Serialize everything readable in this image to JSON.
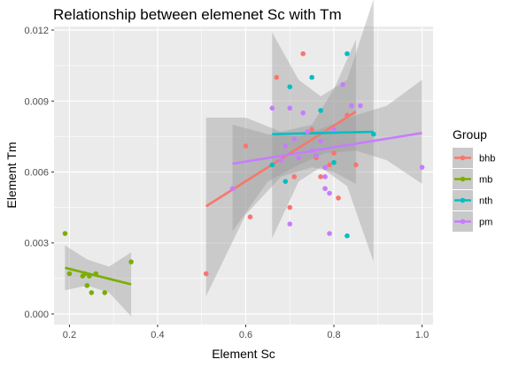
{
  "chart_data": {
    "type": "scatter",
    "title": "Relationship between elemenet Sc with Tm",
    "xlabel": "Element Sc",
    "ylabel": "Element Tm",
    "xlim": [
      0.165,
      1.025
    ],
    "ylim": [
      -0.00045,
      0.01215
    ],
    "x_ticks": [
      0.2,
      0.4,
      0.6,
      0.8,
      1.0
    ],
    "x_tick_labels": [
      "0.2",
      "0.4",
      "0.6",
      "0.8",
      "1.0"
    ],
    "y_ticks": [
      0.0,
      0.003,
      0.006,
      0.009,
      0.012
    ],
    "y_tick_labels": [
      "0.000",
      "0.003",
      "0.006",
      "0.009",
      "0.012"
    ],
    "grid": true,
    "legend": {
      "title": "Group",
      "position": "right"
    },
    "series": [
      {
        "name": "bhb",
        "color": "#F8766D",
        "points": [
          [
            0.51,
            0.0017
          ],
          [
            0.6,
            0.0071
          ],
          [
            0.61,
            0.0041
          ],
          [
            0.67,
            0.01
          ],
          [
            0.7,
            0.0045
          ],
          [
            0.71,
            0.0058
          ],
          [
            0.73,
            0.011
          ],
          [
            0.75,
            0.0078
          ],
          [
            0.76,
            0.0066
          ],
          [
            0.77,
            0.0058
          ],
          [
            0.79,
            0.0063
          ],
          [
            0.8,
            0.0068
          ],
          [
            0.81,
            0.0049
          ],
          [
            0.83,
            0.0084
          ],
          [
            0.85,
            0.0063
          ]
        ],
        "fit": {
          "x": [
            0.51,
            0.85
          ],
          "y": [
            0.00455,
            0.00855
          ]
        },
        "band": {
          "x": [
            0.51,
            0.6,
            0.68,
            0.75,
            0.8,
            0.85
          ],
          "lower": [
            0.00075,
            0.0042,
            0.0058,
            0.0062,
            0.006,
            0.0055
          ],
          "upper": [
            0.0083,
            0.0083,
            0.0077,
            0.008,
            0.0095,
            0.0116
          ]
        }
      },
      {
        "name": "mb",
        "color": "#7CAE00",
        "points": [
          [
            0.19,
            0.0034
          ],
          [
            0.2,
            0.0017
          ],
          [
            0.23,
            0.0016
          ],
          [
            0.235,
            0.0017
          ],
          [
            0.24,
            0.0012
          ],
          [
            0.245,
            0.0016
          ],
          [
            0.25,
            0.0009
          ],
          [
            0.26,
            0.0017
          ],
          [
            0.28,
            0.0009
          ],
          [
            0.34,
            0.0022
          ]
        ],
        "fit": {
          "x": [
            0.19,
            0.34
          ],
          "y": [
            0.00195,
            0.00125
          ]
        },
        "band": {
          "x": [
            0.19,
            0.24,
            0.29,
            0.34
          ],
          "lower": [
            0.001,
            0.0012,
            0.0009,
            -0.0001
          ],
          "upper": [
            0.0029,
            0.0023,
            0.002,
            0.0026
          ]
        }
      },
      {
        "name": "nth",
        "color": "#00BFC4",
        "points": [
          [
            0.66,
            0.0063
          ],
          [
            0.69,
            0.0056
          ],
          [
            0.7,
            0.0096
          ],
          [
            0.75,
            0.01
          ],
          [
            0.77,
            0.0086
          ],
          [
            0.8,
            0.0064
          ],
          [
            0.83,
            0.0033
          ],
          [
            0.83,
            0.011
          ],
          [
            0.89,
            0.0076
          ]
        ],
        "fit": {
          "x": [
            0.66,
            0.89
          ],
          "y": [
            0.0076,
            0.0077
          ]
        },
        "band": {
          "x": [
            0.66,
            0.72,
            0.77,
            0.83,
            0.89
          ],
          "lower": [
            0.0032,
            0.0056,
            0.0062,
            0.0054,
            0.0022
          ],
          "upper": [
            0.0119,
            0.0099,
            0.0092,
            0.0099,
            0.0133
          ]
        }
      },
      {
        "name": "pm",
        "color": "#C77CFF",
        "points": [
          [
            0.57,
            0.0053
          ],
          [
            0.66,
            0.0087
          ],
          [
            0.68,
            0.0065
          ],
          [
            0.69,
            0.0071
          ],
          [
            0.7,
            0.0087
          ],
          [
            0.7,
            0.0038
          ],
          [
            0.71,
            0.0074
          ],
          [
            0.72,
            0.0066
          ],
          [
            0.73,
            0.0085
          ],
          [
            0.74,
            0.0077
          ],
          [
            0.75,
            0.0069
          ],
          [
            0.76,
            0.0067
          ],
          [
            0.77,
            0.0073
          ],
          [
            0.78,
            0.0062
          ],
          [
            0.78,
            0.0058
          ],
          [
            0.78,
            0.0053
          ],
          [
            0.79,
            0.0034
          ],
          [
            0.79,
            0.0051
          ],
          [
            0.8,
            0.0078
          ],
          [
            0.82,
            0.0097
          ],
          [
            0.84,
            0.0088
          ],
          [
            0.86,
            0.0088
          ],
          [
            1.0,
            0.0062
          ]
        ],
        "fit": {
          "x": [
            0.57,
            1.0
          ],
          "y": [
            0.00635,
            0.00765
          ]
        },
        "band": {
          "x": [
            0.57,
            0.65,
            0.72,
            0.78,
            0.85,
            0.92,
            1.0
          ],
          "lower": [
            0.0035,
            0.0056,
            0.0063,
            0.0068,
            0.0069,
            0.0065,
            0.0055
          ],
          "upper": [
            0.008,
            0.0076,
            0.0075,
            0.0079,
            0.0084,
            0.0088,
            0.0099
          ]
        }
      }
    ]
  }
}
